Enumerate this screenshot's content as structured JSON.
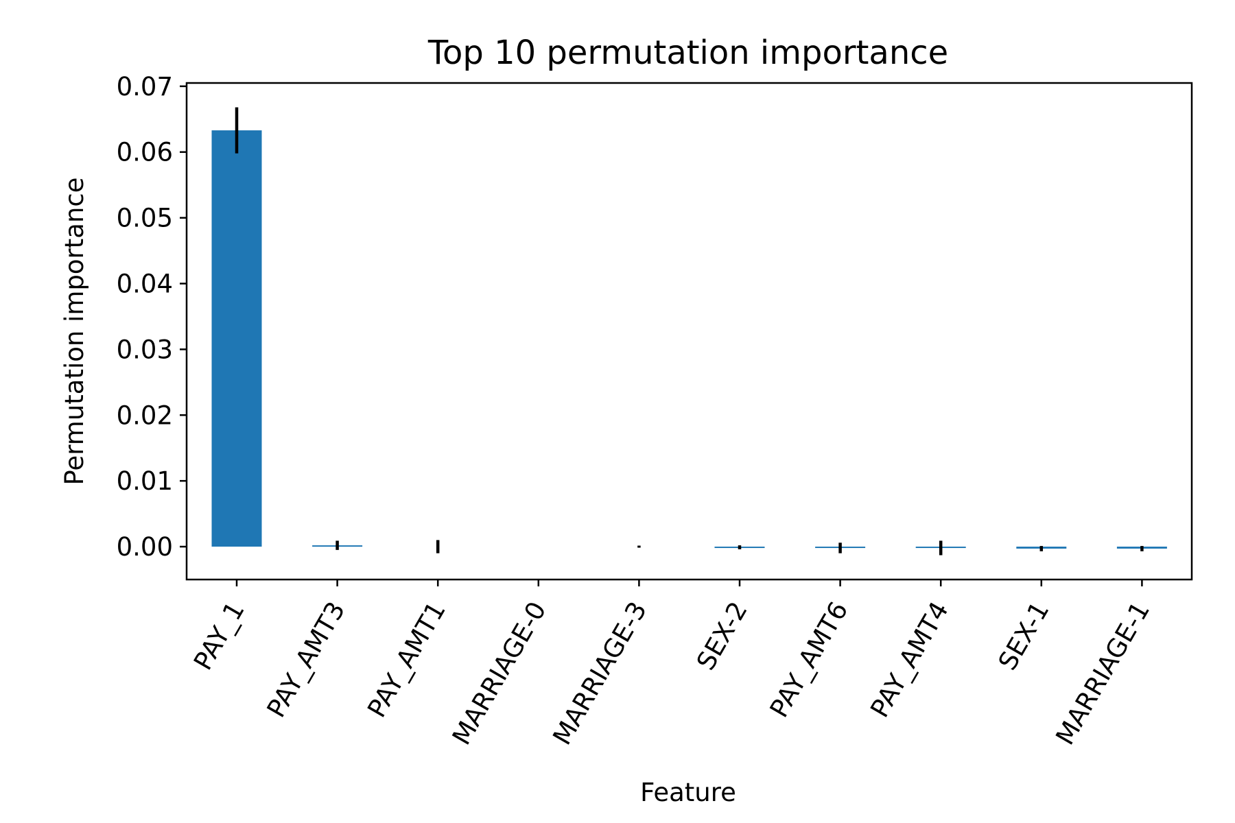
{
  "chart_data": {
    "type": "bar",
    "title": "Top 10 permutation importance",
    "xlabel": "Feature",
    "ylabel": "Permutation importance",
    "categories": [
      "PAY_1",
      "PAY_AMT3",
      "PAY_AMT1",
      "MARRIAGE-0",
      "MARRIAGE-3",
      "SEX-2",
      "PAY_AMT6",
      "PAY_AMT4",
      "SEX-1",
      "MARRIAGE-1"
    ],
    "values": [
      0.0633,
      0.0002,
      0.0,
      0.0,
      0.0,
      -0.0001,
      -0.0002,
      -0.0002,
      -0.0003,
      -0.0003
    ],
    "errors": [
      0.0035,
      0.0007,
      0.001,
      0.0,
      0.0001,
      0.0003,
      0.0008,
      0.0011,
      0.0004,
      0.0004
    ],
    "yticks": [
      "0.00",
      "0.01",
      "0.02",
      "0.03",
      "0.04",
      "0.05",
      "0.06",
      "0.07"
    ],
    "ylim": [
      -0.005,
      0.0705
    ],
    "grid": false,
    "bar_color": "#1f77b4",
    "error_color": "#000000"
  }
}
